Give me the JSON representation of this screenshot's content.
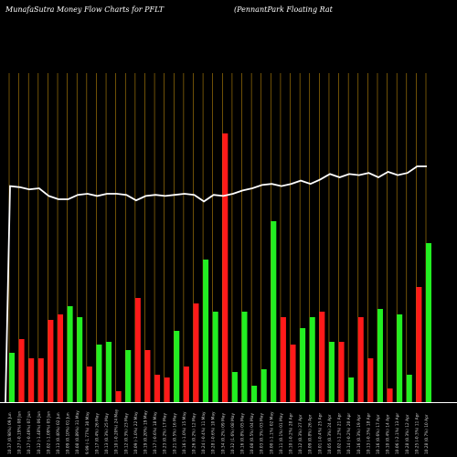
{
  "header": {
    "left_title": "MunafaSutra  Money Flow  Charts for PFLT",
    "right_title": "(PennantPark Floating Rat"
  },
  "colors": {
    "background": "#000000",
    "grid": "#b8860b",
    "up": "#22ee22",
    "down": "#ff1a1a",
    "price_line": "#ffffff",
    "axis": "#ffffff"
  },
  "chart_data": {
    "type": "bar",
    "description_type": "money-flow bars with price line overlay",
    "grid": true,
    "categories": [
      "10.37 (0.98%) 09 Jun",
      "10.27 (-0.19%) 08 Jun",
      "10.17 (-0.49%) 07 Jun",
      "10.12 (-1.48%) 06 Jun",
      "10.02 (-1.09%) 05 Jun",
      "10.13 (0.40%) 02 Jun",
      "10.09 (0.10%) 01 Jun",
      "10.08 (0.89%) 31 May",
      "9.99 (-1.77%) 30 May",
      "10.17 (0.4%) 26 May",
      "10.13 (0.3%) 25 May",
      "10.10 (-0.20%) 24 May",
      "10.12 (0.3%) 23 May",
      "10.09 (-1.0%) 22 May",
      "10.19 (0.20%) 19 May",
      "10.17 (-0.6%) 18 May",
      "10.23 (0.2%) 17 May",
      "10.21 (0.5%) 16 May",
      "10.16 (-1.0%) 15 May",
      "10.26 (0.2%) 12 May",
      "10.24 (-0.4%) 11 May",
      "10.28 (-0.6%) 10 May",
      "10.34 (0.2%) 09 May",
      "10.32 (1.6%) 08 May",
      "10.16 (0.8%) 05 May",
      "10.08 (0.5%) 04 May",
      "10.03 (0.3%) 03 May",
      "10.00 (-1.1%) 02 May",
      "10.11 (0.1%) 01 May",
      "10.10 (-0.2%) 28 Apr",
      "10.12 (0.3%) 27 Apr",
      "10.09 (0.8%) 26 Apr",
      "10.01 (-0.4%) 25 Apr",
      "10.05 (0.3%) 24 Apr",
      "10.02 (-1.2%) 21 Apr",
      "10.14 (-0.2%) 20 Apr",
      "10.16 (0.3%) 19 Apr",
      "10.13 (-0.3%) 18 Apr",
      "10.16 (0.6%) 17 Apr",
      "10.10 (0.4%) 14 Apr",
      "10.06 (-2.1%) 13 Apr",
      "10.28 (0.3%) 12 Apr",
      "10.25 (-0.3%) 11 Apr",
      "10.28 (0.7%) 10 Apr"
    ],
    "colors": [
      "g",
      "r",
      "r",
      "r",
      "r",
      "r",
      "g",
      "g",
      "r",
      "g",
      "g",
      "r",
      "g",
      "r",
      "r",
      "r",
      "r",
      "g",
      "r",
      "r",
      "g",
      "g",
      "r",
      "g",
      "g",
      "g",
      "g",
      "g",
      "r",
      "r",
      "g",
      "g",
      "r",
      "g",
      "r",
      "g",
      "r",
      "r",
      "g",
      "r",
      "g",
      "g",
      "r",
      "g"
    ],
    "values": [
      18,
      23,
      16,
      16,
      30,
      32,
      35,
      31,
      13,
      21,
      22,
      4,
      19,
      38,
      19,
      10,
      9,
      26,
      13,
      36,
      52,
      33,
      98,
      11,
      33,
      6,
      12,
      66,
      31,
      21,
      27,
      31,
      33,
      22,
      22,
      9,
      31,
      16,
      34,
      5,
      32,
      10,
      42,
      58
    ],
    "price": [
      10.37,
      10.36,
      10.34,
      10.35,
      10.28,
      10.25,
      10.25,
      10.29,
      10.3,
      10.28,
      10.3,
      10.3,
      10.29,
      10.24,
      10.28,
      10.29,
      10.28,
      10.29,
      10.3,
      10.29,
      10.23,
      10.29,
      10.28,
      10.3,
      10.33,
      10.35,
      10.38,
      10.39,
      10.37,
      10.39,
      10.42,
      10.39,
      10.43,
      10.48,
      10.45,
      10.48,
      10.47,
      10.49,
      10.45,
      10.5,
      10.47,
      10.49,
      10.55,
      10.55
    ],
    "price_start_drop": 8.4,
    "ylim": [
      0,
      120
    ],
    "price_ylim": [
      8.4,
      11.4
    ]
  }
}
